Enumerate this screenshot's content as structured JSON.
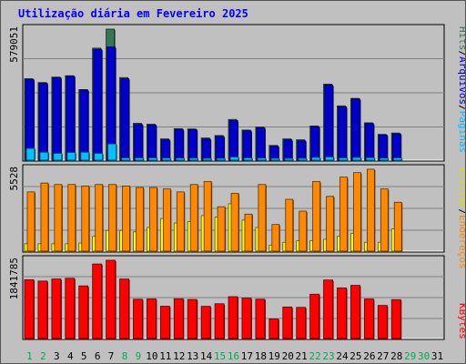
{
  "title": "Utilização diária em Fevereiro 2025",
  "colors": {
    "hits": "#337755",
    "files": "#0000cc",
    "pages": "#00c0ff",
    "visits": "#ffff00",
    "sites": "#ff8800",
    "kbytes": "#ff0000",
    "title": "#0000ff",
    "background": "#c0c0c0",
    "panel": "#c0c0c0",
    "weekday": "#007000",
    "weekend": "#00aa55"
  },
  "right_labels": {
    "hits": "Hits",
    "files": "Arquivos",
    "pages": "Páginas",
    "visits": "Visitas",
    "sites": "Endereços",
    "kbytes": "KBytes",
    "sep": "/"
  },
  "chart_data": {
    "type": "bar",
    "days": [
      "1",
      "2",
      "3",
      "4",
      "5",
      "6",
      "7",
      "8",
      "9",
      "10",
      "11",
      "12",
      "13",
      "14",
      "15",
      "16",
      "17",
      "18",
      "19",
      "20",
      "21",
      "22",
      "23",
      "24",
      "25",
      "26",
      "27",
      "28",
      "29",
      "30",
      "31"
    ],
    "weekend_days": [
      "1",
      "2",
      "8",
      "9",
      "15",
      "16",
      "22",
      "23",
      "29",
      "30"
    ],
    "panels": [
      {
        "id": "top",
        "ymax_label": "579051",
        "ymax": 579051,
        "series": [
          {
            "name": "Hits",
            "key": "hits",
            "values": [
              360000,
              343000,
              367000,
              373000,
              312000,
              495000,
              579051,
              365000,
              163000,
              159000,
              94000,
              139000,
              138000,
              98000,
              109000,
              180000,
              133000,
              146000,
              65000,
              94000,
              90000,
              151000,
              336000,
              240000,
              273000,
              165000,
              114000,
              120000,
              0,
              0,
              0
            ]
          },
          {
            "name": "Arquivos",
            "key": "files",
            "values": [
              357000,
              340000,
              365000,
              371000,
              310000,
              490000,
              500000,
              360000,
              158000,
              155000,
              90000,
              136000,
              135000,
              94000,
              105000,
              175000,
              130000,
              143000,
              62000,
              90000,
              86000,
              148000,
              332000,
              236000,
              270000,
              162000,
              111000,
              116000,
              0,
              0,
              0
            ]
          },
          {
            "name": "Páginas",
            "key": "pages",
            "values": [
              52000,
              35000,
              30000,
              34000,
              35000,
              30000,
              72000,
              10000,
              10000,
              10000,
              9000,
              9000,
              9000,
              8000,
              8000,
              14000,
              10000,
              9000,
              8000,
              8000,
              8000,
              12000,
              14000,
              10000,
              12000,
              11000,
              9000,
              10000,
              0,
              0,
              0
            ]
          }
        ]
      },
      {
        "id": "middle",
        "ymax_label": "5528",
        "ymax": 5528,
        "series": [
          {
            "name": "Visitas",
            "key": "visits",
            "values": [
              500,
              500,
              500,
              500,
              550,
              1000,
              1400,
              1400,
              1300,
              1600,
              2200,
              1900,
              2000,
              2400,
              2300,
              3200,
              2100,
              1600,
              400,
              600,
              700,
              700,
              800,
              1000,
              1200,
              600,
              600,
              1500,
              0,
              0,
              0
            ]
          },
          {
            "name": "Endereços",
            "key": "sites",
            "values": [
              4000,
              4600,
              4500,
              4500,
              4400,
              4500,
              4500,
              4400,
              4300,
              4300,
              4200,
              4000,
              4500,
              4700,
              3000,
              3900,
              2500,
              4500,
              1800,
              3500,
              2700,
              4700,
              3700,
              5000,
              5300,
              5528,
              4200,
              3300,
              0,
              0,
              0
            ]
          }
        ]
      },
      {
        "id": "bottom",
        "ymax_label": "1841785",
        "ymax": 1841785,
        "series": [
          {
            "name": "KBytes",
            "key": "kbytes",
            "values": [
              1384000,
              1352000,
              1401000,
              1418000,
              1238000,
              1754000,
              1841785,
              1400000,
              925000,
              932000,
              760000,
              936000,
              919000,
              757000,
              818000,
              985000,
              951000,
              926000,
              462000,
              742000,
              733000,
              1043000,
              1377000,
              1192000,
              1251000,
              931000,
              779000,
              915000,
              0,
              0,
              0
            ]
          }
        ]
      }
    ]
  }
}
